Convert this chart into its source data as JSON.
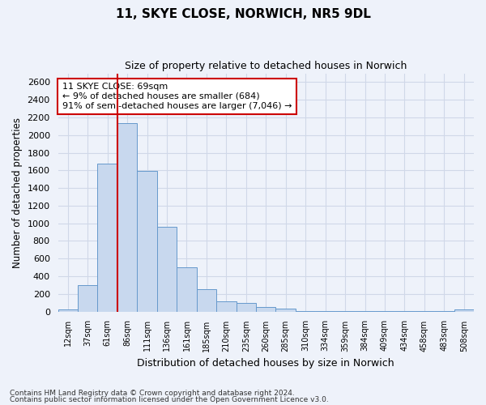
{
  "title_line1": "11, SKYE CLOSE, NORWICH, NR5 9DL",
  "title_line2": "Size of property relative to detached houses in Norwich",
  "xlabel": "Distribution of detached houses by size in Norwich",
  "ylabel": "Number of detached properties",
  "categories": [
    "12sqm",
    "37sqm",
    "61sqm",
    "86sqm",
    "111sqm",
    "136sqm",
    "161sqm",
    "185sqm",
    "210sqm",
    "235sqm",
    "260sqm",
    "285sqm",
    "310sqm",
    "334sqm",
    "359sqm",
    "384sqm",
    "409sqm",
    "434sqm",
    "458sqm",
    "483sqm",
    "508sqm"
  ],
  "values": [
    25,
    300,
    1675,
    2140,
    1590,
    960,
    500,
    250,
    120,
    100,
    50,
    30,
    5,
    5,
    5,
    5,
    5,
    5,
    5,
    5,
    25
  ],
  "bar_color": "#c8d8ee",
  "bar_edgecolor": "#6699cc",
  "grid_color": "#d0d8e8",
  "vline_color": "#cc0000",
  "annotation_text": "11 SKYE CLOSE: 69sqm\n← 9% of detached houses are smaller (684)\n91% of semi-detached houses are larger (7,046) →",
  "annotation_box_edgecolor": "#cc0000",
  "annotation_box_facecolor": "#ffffff",
  "ylim": [
    0,
    2700
  ],
  "yticks": [
    0,
    200,
    400,
    600,
    800,
    1000,
    1200,
    1400,
    1600,
    1800,
    2000,
    2200,
    2400,
    2600
  ],
  "footnote1": "Contains HM Land Registry data © Crown copyright and database right 2024.",
  "footnote2": "Contains public sector information licensed under the Open Government Licence v3.0.",
  "bg_color": "#eef2fa"
}
